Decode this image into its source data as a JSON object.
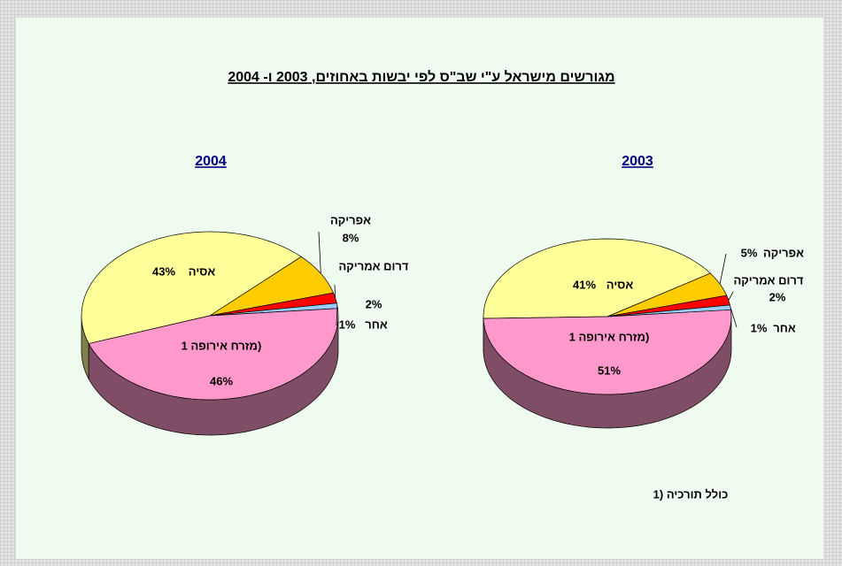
{
  "title": "מגורשים מישראל ע\"י שב\"ס לפי יבשות באחוזים, 2003 ו- 2004",
  "footnote": "1) כולל תורכיה",
  "chart_data": [
    {
      "type": "pie",
      "title": "2004",
      "categories": [
        "אסיה",
        "אפריקה",
        "דרום אמריקה",
        "אחר",
        "מזרח אירופה 1)"
      ],
      "values": [
        43,
        8,
        2,
        1,
        46
      ],
      "value_labels": [
        "43%",
        "8%",
        "2%",
        "1%",
        "46%"
      ],
      "colors": [
        "#ffff99",
        "#ffcc00",
        "#ff0000",
        "#99ccff",
        "#ff99cc"
      ]
    },
    {
      "type": "pie",
      "title": "2003",
      "categories": [
        "אסיה",
        "אפריקה",
        "דרום אמריקה",
        "אחר",
        "מזרח אירופה 1)"
      ],
      "values": [
        41,
        5,
        2,
        1,
        51
      ],
      "value_labels": [
        "41%",
        "5%",
        "2%",
        "1%",
        "51%"
      ],
      "colors": [
        "#ffff99",
        "#ffcc00",
        "#ff0000",
        "#99ccff",
        "#ff99cc"
      ]
    }
  ]
}
